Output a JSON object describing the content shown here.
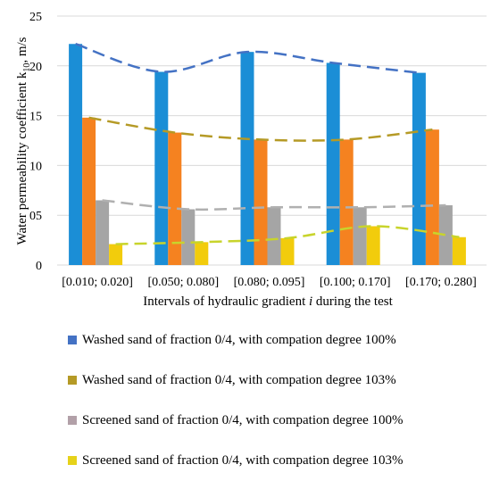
{
  "chart_data": {
    "type": "bar",
    "categories": [
      "[0.010; 0.020]",
      "[0.050; 0.080]",
      "[0.080; 0.095]",
      "[0.100; 0.170]",
      "[0.170; 0.280]"
    ],
    "series": [
      {
        "name": "Washed sand of fraction 0/4, with compation degree  100%",
        "values": [
          22.2,
          19.4,
          21.4,
          20.3,
          19.3
        ],
        "color": "#1b8ed6",
        "trend_color": "#4472c4"
      },
      {
        "name": "Washed sand of fraction 0/4, with compation degree  103%",
        "values": [
          14.8,
          13.3,
          12.6,
          12.6,
          13.6
        ],
        "color": "#f58220",
        "trend_color": "#b59a26"
      },
      {
        "name": "Screened sand of fraction 0/4, with compation degree  100%",
        "values": [
          6.5,
          5.6,
          5.8,
          5.8,
          6.0
        ],
        "color": "#a5a5a5",
        "trend_color": "#b0b0b0"
      },
      {
        "name": "Screened sand of fraction 0/4, with compation degree  103%",
        "values": [
          2.1,
          2.3,
          2.7,
          3.9,
          2.8
        ],
        "color": "#f2cc0c",
        "trend_color": "#c8d42c"
      }
    ],
    "xlabel_prefix": "Intervals of hydraulic gradient ",
    "xlabel_var": "i",
    "xlabel_suffix": " during the test",
    "ylabel_main": "Water permeability coefficient k",
    "ylabel_sub": "10",
    "ylabel_unit": ", m/s",
    "yticks": [
      "0",
      "05",
      "10",
      "15",
      "20",
      "25"
    ],
    "ylim": [
      0,
      25
    ],
    "grid": true,
    "legend_position": "bottom",
    "trendlines": "dashed polynomial per series"
  }
}
